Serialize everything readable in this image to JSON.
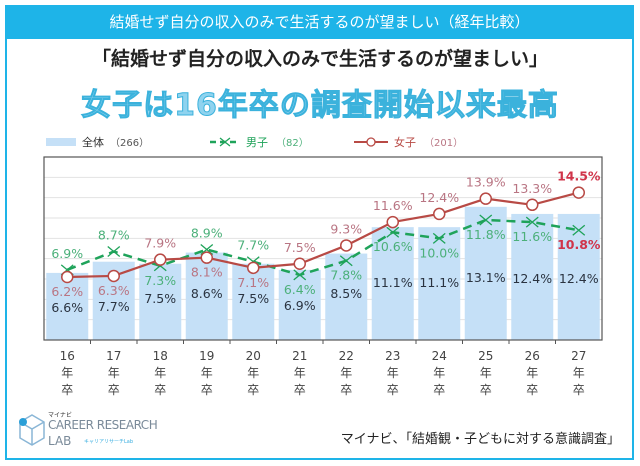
{
  "header": {
    "banner": "結婚せず自分の収入のみで生活するのが望ましい（経年比較）",
    "headline": "「結婚せず自分の収入のみで生活するのが望ましい」",
    "subheadline": "女子は16年卒の調査開始以来最高"
  },
  "source": "マイナビ、「結婚観・子どもに対する意識調査」",
  "logo": {
    "kana": "マイナビ",
    "line1": "CAREER RESEARCH",
    "line2": "LAB",
    "sub": "キャリアリサーチLab"
  },
  "chart_data": {
    "type": "bar+line",
    "categories": [
      "16年卒",
      "17年卒",
      "18年卒",
      "19年卒",
      "20年卒",
      "21年卒",
      "22年卒",
      "23年卒",
      "24年卒",
      "25年卒",
      "26年卒",
      "27年卒"
    ],
    "tick_labels": [
      [
        "16",
        "年",
        "卒"
      ],
      [
        "17",
        "年",
        "卒"
      ],
      [
        "18",
        "年",
        "卒"
      ],
      [
        "19",
        "年",
        "卒"
      ],
      [
        "20",
        "年",
        "卒"
      ],
      [
        "21",
        "年",
        "卒"
      ],
      [
        "22",
        "年",
        "卒"
      ],
      [
        "23",
        "年",
        "卒"
      ],
      [
        "24",
        "年",
        "卒"
      ],
      [
        "25",
        "年",
        "卒"
      ],
      [
        "26",
        "年",
        "卒"
      ],
      [
        "27",
        "年",
        "卒"
      ]
    ],
    "ylim": [
      0,
      18
    ],
    "grid": true,
    "legend": "top",
    "series": [
      {
        "name": "全体",
        "n": "（266）",
        "kind": "bar",
        "color": "#c5e0f7",
        "label_color": "#2a3340",
        "values": [
          6.6,
          7.7,
          7.5,
          8.6,
          7.5,
          6.9,
          8.5,
          11.1,
          11.1,
          13.1,
          12.4,
          12.4
        ]
      },
      {
        "name": "男子",
        "n": "（82）",
        "kind": "line-dashed",
        "marker": "x",
        "color": "#1fa35a",
        "label_color": "#4cb07a",
        "highlight_color": "#d0344a",
        "values": [
          6.9,
          8.7,
          7.3,
          8.9,
          7.7,
          6.4,
          7.8,
          10.6,
          10.0,
          11.8,
          11.6,
          10.8
        ]
      },
      {
        "name": "女子",
        "n": "（201）",
        "kind": "line",
        "marker": "circle",
        "color": "#b84a45",
        "label_color": "#b97583",
        "highlight_color": "#d0344a",
        "values": [
          6.2,
          6.3,
          7.9,
          8.1,
          7.1,
          7.5,
          9.3,
          11.6,
          12.4,
          13.9,
          13.3,
          14.5
        ]
      }
    ]
  }
}
